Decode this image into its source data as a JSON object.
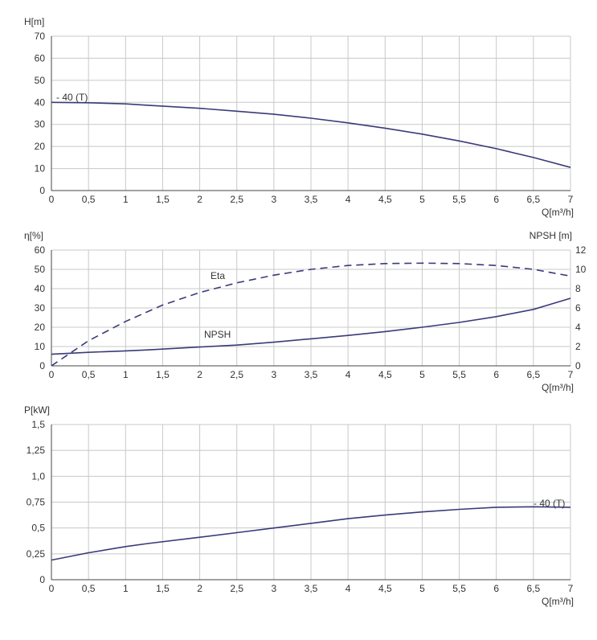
{
  "chart_data": [
    {
      "type": "line",
      "ylabel": "H[m]",
      "xlabel": "Q[m³/h]",
      "xlim": [
        0,
        7
      ],
      "ylim": [
        0,
        70
      ],
      "x_ticks": [
        "0",
        "0,5",
        "1",
        "1,5",
        "2",
        "2,5",
        "3",
        "3,5",
        "4",
        "4,5",
        "5",
        "5,5",
        "6",
        "6,5",
        "7"
      ],
      "y_ticks": [
        "0",
        "10",
        "20",
        "30",
        "40",
        "50",
        "60",
        "70"
      ],
      "grid": true,
      "series": [
        {
          "name": "- 40 (T)",
          "color": "#3a3a7a",
          "x": [
            0,
            0.5,
            1,
            1.3,
            2,
            2.5,
            3,
            3.5,
            4,
            4.5,
            5,
            5.5,
            6,
            6.5,
            7
          ],
          "y": [
            40,
            39.8,
            39.3,
            38.7,
            37.3,
            36,
            34.6,
            32.8,
            30.7,
            28.3,
            25.6,
            22.5,
            19,
            15,
            10.5
          ]
        }
      ]
    },
    {
      "type": "line",
      "ylabel": "η[%]",
      "ylabel_right": "NPSH [m]",
      "xlabel": "Q[m³/h]",
      "xlim": [
        0,
        7
      ],
      "ylim": [
        0,
        60
      ],
      "ylim_right": [
        0,
        12
      ],
      "x_ticks": [
        "0",
        "0,5",
        "1",
        "1,5",
        "2",
        "2,5",
        "3",
        "3,5",
        "4",
        "4,5",
        "5",
        "5,5",
        "6",
        "6,5",
        "7"
      ],
      "y_ticks": [
        "0",
        "10",
        "20",
        "30",
        "40",
        "50",
        "60"
      ],
      "y_ticks_right": [
        "0",
        "2",
        "4",
        "6",
        "8",
        "10",
        "12"
      ],
      "grid": true,
      "series": [
        {
          "name": "Eta",
          "axis": "left",
          "style": "dashed",
          "color": "#3a3a7a",
          "x": [
            0,
            0.25,
            0.5,
            1,
            1.5,
            2,
            2.5,
            3,
            3.5,
            4,
            4.5,
            5,
            5.5,
            6,
            6.5,
            7
          ],
          "y": [
            0,
            6.5,
            13,
            23,
            31.5,
            38,
            43,
            47,
            50,
            52,
            53,
            53.2,
            53,
            52,
            50,
            46.5
          ]
        },
        {
          "name": "NPSH",
          "axis": "right",
          "style": "solid",
          "color": "#3a3a7a",
          "x": [
            0,
            0.5,
            1,
            1.3,
            2,
            2.5,
            3,
            3.5,
            4,
            4.5,
            5,
            5.5,
            6,
            6.5,
            7
          ],
          "y": [
            1.2,
            1.4,
            1.55,
            1.65,
            1.95,
            2.15,
            2.45,
            2.8,
            3.15,
            3.55,
            4.0,
            4.5,
            5.1,
            5.85,
            7.0
          ]
        }
      ]
    },
    {
      "type": "line",
      "ylabel": "P[kW]",
      "xlabel": "Q[m³/h]",
      "xlim": [
        0,
        7
      ],
      "ylim": [
        0,
        1.5
      ],
      "x_ticks": [
        "0",
        "0,5",
        "1",
        "1,5",
        "2",
        "2,5",
        "3",
        "3,5",
        "4",
        "4,5",
        "5",
        "5,5",
        "6",
        "6,5",
        "7"
      ],
      "y_ticks": [
        "0",
        "0,25",
        "0,5",
        "0,75",
        "1,0",
        "1,25",
        "1,5"
      ],
      "grid": true,
      "series": [
        {
          "name": "- 40 (T)",
          "color": "#3a3a7a",
          "x": [
            0,
            0.5,
            1,
            1.3,
            2,
            2.5,
            3,
            3.5,
            4,
            4.5,
            5,
            5.5,
            6,
            6.5,
            7
          ],
          "y": [
            0.19,
            0.26,
            0.32,
            0.35,
            0.41,
            0.455,
            0.5,
            0.545,
            0.59,
            0.625,
            0.655,
            0.68,
            0.7,
            0.705,
            0.7
          ]
        }
      ]
    }
  ]
}
